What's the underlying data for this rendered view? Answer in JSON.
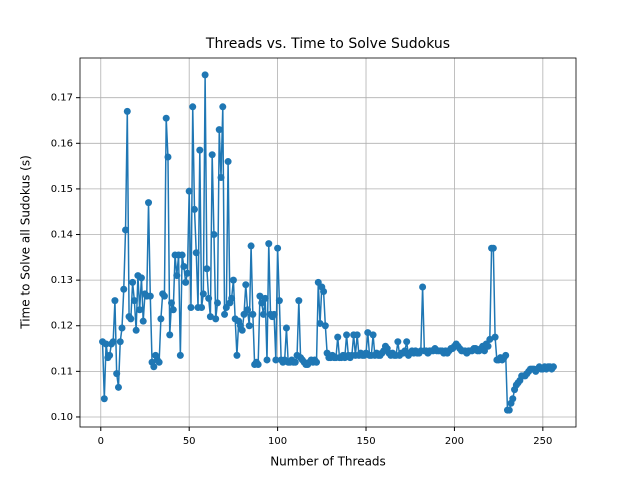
{
  "chart_data": {
    "type": "line",
    "title": "Threads vs. Time to Solve Sudokus",
    "x_label": "Number of Threads",
    "y_label": "Time to Solve all Sudokus (s)",
    "color": "#1f77b4",
    "grid": true,
    "markers": true,
    "x": [
      1,
      2,
      3,
      4,
      5,
      6,
      7,
      8,
      9,
      10,
      11,
      12,
      13,
      14,
      15,
      16,
      17,
      18,
      19,
      20,
      21,
      22,
      23,
      24,
      25,
      26,
      27,
      28,
      29,
      30,
      31,
      32,
      33,
      34,
      35,
      36,
      37,
      38,
      39,
      40,
      41,
      42,
      43,
      44,
      45,
      46,
      47,
      48,
      49,
      50,
      51,
      52,
      53,
      54,
      55,
      56,
      57,
      58,
      59,
      60,
      61,
      62,
      63,
      64,
      65,
      66,
      67,
      68,
      69,
      70,
      71,
      72,
      73,
      74,
      75,
      76,
      77,
      78,
      79,
      80,
      81,
      82,
      83,
      84,
      85,
      86,
      87,
      88,
      89,
      90,
      91,
      92,
      93,
      94,
      95,
      96,
      97,
      98,
      99,
      100,
      101,
      102,
      103,
      104,
      105,
      106,
      107,
      108,
      109,
      110,
      111,
      112,
      113,
      114,
      115,
      116,
      117,
      118,
      119,
      120,
      121,
      122,
      123,
      124,
      125,
      126,
      127,
      128,
      129,
      130,
      131,
      132,
      133,
      134,
      135,
      136,
      137,
      138,
      139,
      140,
      141,
      142,
      143,
      144,
      145,
      146,
      147,
      148,
      149,
      150,
      151,
      152,
      153,
      154,
      155,
      156,
      157,
      158,
      159,
      160,
      161,
      162,
      163,
      164,
      165,
      166,
      167,
      168,
      169,
      170,
      171,
      172,
      173,
      174,
      175,
      176,
      177,
      178,
      179,
      180,
      181,
      182,
      183,
      184,
      185,
      186,
      187,
      188,
      189,
      190,
      191,
      192,
      193,
      194,
      195,
      196,
      197,
      198,
      199,
      200,
      201,
      202,
      203,
      204,
      205,
      206,
      207,
      208,
      209,
      210,
      211,
      212,
      213,
      214,
      215,
      216,
      217,
      218,
      219,
      220,
      221,
      222,
      223,
      224,
      225,
      226,
      227,
      228,
      229,
      230,
      231,
      232,
      233,
      234,
      235,
      236,
      237,
      238,
      239,
      240,
      241,
      242,
      243,
      244,
      245,
      246,
      247,
      248,
      249,
      250,
      251,
      252,
      253,
      254,
      255,
      256
    ],
    "values": [
      0.1165,
      0.104,
      0.116,
      0.113,
      0.1135,
      0.116,
      0.1165,
      0.1255,
      0.1095,
      0.1065,
      0.1165,
      0.1195,
      0.128,
      0.141,
      0.167,
      0.122,
      0.1215,
      0.1295,
      0.1255,
      0.119,
      0.131,
      0.1235,
      0.1305,
      0.121,
      0.127,
      0.1265,
      0.147,
      0.1265,
      0.112,
      0.111,
      0.1135,
      0.1125,
      0.112,
      0.1215,
      0.127,
      0.1265,
      0.1655,
      0.157,
      0.118,
      0.125,
      0.1235,
      0.1355,
      0.131,
      0.1355,
      0.1135,
      0.1355,
      0.133,
      0.1295,
      0.1315,
      0.1495,
      0.124,
      0.168,
      0.1455,
      0.136,
      0.124,
      0.1585,
      0.124,
      0.127,
      0.175,
      0.1325,
      0.126,
      0.122,
      0.1575,
      0.14,
      0.1215,
      0.125,
      0.163,
      0.1525,
      0.168,
      0.1225,
      0.124,
      0.156,
      0.125,
      0.126,
      0.13,
      0.1215,
      0.1135,
      0.121,
      0.12,
      0.119,
      0.1225,
      0.129,
      0.1235,
      0.12,
      0.1375,
      0.1225,
      0.1115,
      0.112,
      0.1115,
      0.1265,
      0.125,
      0.1225,
      0.126,
      0.1125,
      0.138,
      0.1225,
      0.122,
      0.1225,
      0.1125,
      0.137,
      0.1255,
      0.1125,
      0.112,
      0.1125,
      0.1195,
      0.112,
      0.112,
      0.1125,
      0.112,
      0.112,
      0.1135,
      0.1255,
      0.113,
      0.1125,
      0.112,
      0.1115,
      0.1115,
      0.112,
      0.1125,
      0.112,
      0.1125,
      0.112,
      0.1295,
      0.1205,
      0.1285,
      0.1275,
      0.12,
      0.114,
      0.113,
      0.113,
      0.1135,
      0.113,
      0.113,
      0.1175,
      0.113,
      0.113,
      0.1135,
      0.113,
      0.118,
      0.1135,
      0.113,
      0.1135,
      0.118,
      0.1135,
      0.118,
      0.1135,
      0.114,
      0.1135,
      0.1135,
      0.114,
      0.1185,
      0.1135,
      0.1135,
      0.118,
      0.1135,
      0.114,
      0.1135,
      0.1135,
      0.114,
      0.1145,
      0.1155,
      0.115,
      0.114,
      0.1135,
      0.114,
      0.1135,
      0.1135,
      0.1165,
      0.1135,
      0.114,
      0.114,
      0.1145,
      0.1165,
      0.1135,
      0.114,
      0.1145,
      0.114,
      0.1145,
      0.114,
      0.114,
      0.1145,
      0.1285,
      0.1145,
      0.1145,
      0.114,
      0.1145,
      0.1145,
      0.1145,
      0.115,
      0.1145,
      0.1145,
      0.1145,
      0.1145,
      0.114,
      0.1145,
      0.114,
      0.1145,
      0.115,
      0.115,
      0.1155,
      0.116,
      0.1155,
      0.115,
      0.1145,
      0.1145,
      0.1145,
      0.114,
      0.1145,
      0.1145,
      0.1145,
      0.115,
      0.115,
      0.1145,
      0.1145,
      0.115,
      0.1155,
      0.1145,
      0.116,
      0.1155,
      0.117,
      0.137,
      0.137,
      0.1175,
      0.1125,
      0.1125,
      0.113,
      0.1125,
      0.113,
      0.1135,
      0.1015,
      0.1015,
      0.103,
      0.104,
      0.106,
      0.107,
      0.1075,
      0.108,
      0.109,
      0.109,
      0.109,
      0.1095,
      0.11,
      0.1105,
      0.1105,
      0.1105,
      0.11,
      0.1105,
      0.111,
      0.1105,
      0.1105,
      0.111,
      0.1105,
      0.111,
      0.111,
      0.1105,
      0.111
    ],
    "xlim": [
      -11.75,
      268.75
    ],
    "xticks": [
      0,
      50,
      100,
      150,
      200,
      250
    ],
    "ylim": [
      0.0978,
      0.1787
    ],
    "yticks": [
      {
        "value": 0.1,
        "label": "0.10"
      },
      0.11,
      0.12,
      0.13,
      0.14,
      0.15,
      0.16,
      0.17
    ]
  }
}
